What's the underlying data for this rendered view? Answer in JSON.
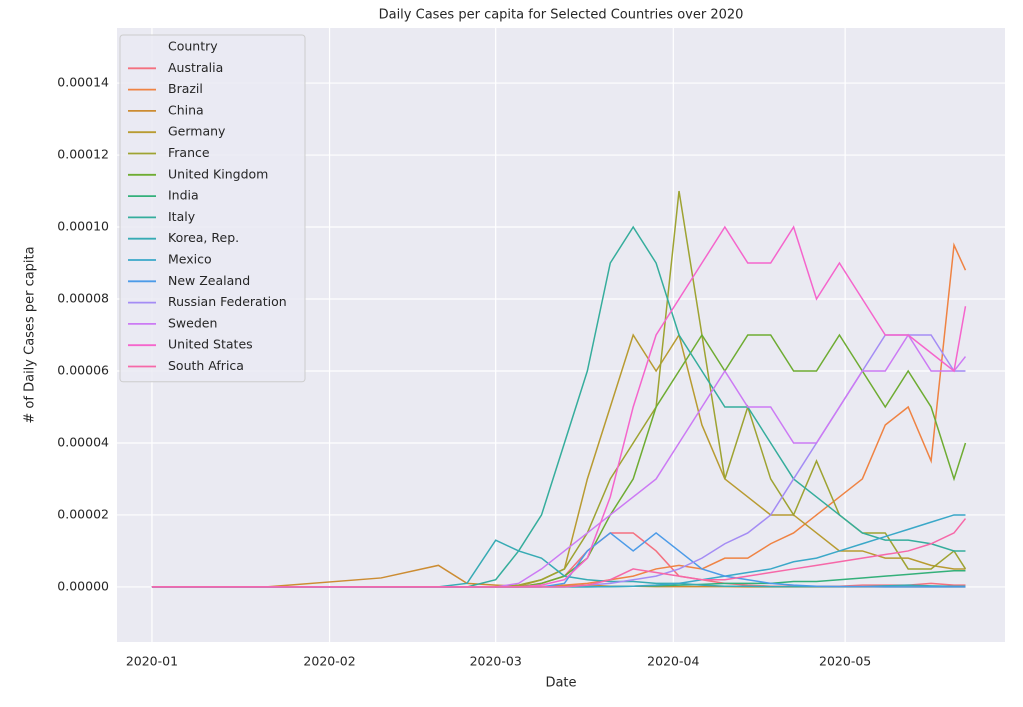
{
  "chart_data": {
    "type": "line",
    "title": "Daily Cases per capita for Selected Countries over 2020",
    "xlabel": "Date",
    "ylabel": "# of Daily Cases per capita",
    "legend_title": "Country",
    "legend": "upper left",
    "grid": true,
    "xlim": [
      -6.1,
      148.9
    ],
    "xticks": [
      {
        "value": 0,
        "label": "2020-01"
      },
      {
        "value": 31,
        "label": "2020-02"
      },
      {
        "value": 60,
        "label": "2020-03"
      },
      {
        "value": 91,
        "label": "2020-04"
      },
      {
        "value": 121,
        "label": "2020-05"
      }
    ],
    "ylim": [
      -1.53e-05,
      0.0001553
    ],
    "yticks": [
      {
        "value": 0,
        "label": "0.00000"
      },
      {
        "value": 2e-05,
        "label": "0.00002"
      },
      {
        "value": 4e-05,
        "label": "0.00004"
      },
      {
        "value": 6e-05,
        "label": "0.00006"
      },
      {
        "value": 8e-05,
        "label": "0.00008"
      },
      {
        "value": 0.0001,
        "label": "0.00010"
      },
      {
        "value": 0.00012,
        "label": "0.00012"
      },
      {
        "value": 0.00014,
        "label": "0.00014"
      }
    ],
    "x": [
      0,
      20,
      40,
      50,
      55,
      60,
      64,
      68,
      72,
      76,
      80,
      84,
      88,
      92,
      96,
      100,
      104,
      108,
      112,
      116,
      120,
      124,
      128,
      132,
      136,
      140,
      142
    ],
    "series": [
      {
        "name": "Australia",
        "color": "#f4707f",
        "values": [
          0,
          0,
          0,
          0,
          0,
          0,
          0,
          1e-06,
          3e-06,
          1e-05,
          1.5e-05,
          1.5e-05,
          1e-05,
          3e-06,
          2e-06,
          1e-06,
          5e-07,
          2e-07,
          2e-07,
          2e-07,
          2e-07,
          5e-07,
          5e-07,
          5e-07,
          1e-06,
          5e-07,
          5e-07
        ]
      },
      {
        "name": "Brazil",
        "color": "#ef8343",
        "values": [
          0,
          0,
          0,
          0,
          0,
          0,
          0,
          0,
          5e-07,
          1e-06,
          2e-06,
          3e-06,
          5e-06,
          6e-06,
          5e-06,
          8e-06,
          8e-06,
          1.2e-05,
          1.5e-05,
          2e-05,
          2.5e-05,
          3e-05,
          4.5e-05,
          5e-05,
          3.5e-05,
          9.5e-05,
          8.8e-05
        ]
      },
      {
        "name": "China",
        "color": "#cc8c32",
        "values": [
          0,
          0,
          2.5e-06,
          6e-06,
          1e-06,
          5e-07,
          2e-07,
          1e-07,
          2e-07,
          5e-07,
          2e-07,
          2e-07,
          1e-07,
          1e-07,
          1e-07,
          1e-07,
          0,
          0,
          0,
          0,
          0,
          0,
          0,
          0,
          0,
          0,
          0
        ]
      },
      {
        "name": "Germany",
        "color": "#b89b31",
        "values": [
          0,
          0,
          0,
          0,
          0,
          0,
          2e-07,
          2e-06,
          5e-06,
          3e-05,
          5e-05,
          7e-05,
          6e-05,
          7e-05,
          4.5e-05,
          3e-05,
          2.5e-05,
          2e-05,
          2e-05,
          1.5e-05,
          1e-05,
          1e-05,
          8e-06,
          8e-06,
          6e-06,
          5e-06,
          5e-06
        ]
      },
      {
        "name": "France",
        "color": "#9ea332",
        "values": [
          0,
          0,
          0,
          0,
          0,
          0,
          5e-07,
          2e-06,
          5e-06,
          1.5e-05,
          3e-05,
          4e-05,
          5e-05,
          0.00011,
          7e-05,
          3e-05,
          5e-05,
          3e-05,
          2e-05,
          3.5e-05,
          2e-05,
          1.5e-05,
          1.5e-05,
          5e-06,
          5e-06,
          1e-05,
          5e-06
        ]
      },
      {
        "name": "United Kingdom",
        "color": "#6eac32",
        "values": [
          0,
          0,
          0,
          0,
          0,
          0,
          0,
          1e-06,
          3e-06,
          8e-06,
          2e-05,
          3e-05,
          5e-05,
          6e-05,
          7e-05,
          6e-05,
          7e-05,
          7e-05,
          6e-05,
          6e-05,
          7e-05,
          6e-05,
          5e-05,
          6e-05,
          5e-05,
          3e-05,
          4e-05
        ]
      },
      {
        "name": "India",
        "color": "#33b07a",
        "values": [
          0,
          0,
          0,
          0,
          0,
          0,
          0,
          0,
          0,
          0,
          1e-07,
          2e-07,
          3e-07,
          5e-07,
          7e-07,
          1e-06,
          1e-06,
          1e-06,
          1.5e-06,
          1.5e-06,
          2e-06,
          2.5e-06,
          3e-06,
          3.5e-06,
          4e-06,
          4.5e-06,
          4.5e-06
        ]
      },
      {
        "name": "Italy",
        "color": "#35ad9c",
        "values": [
          0,
          0,
          0,
          0,
          0,
          2e-06,
          1e-05,
          2e-05,
          4e-05,
          6e-05,
          9e-05,
          0.0001,
          9e-05,
          7e-05,
          6e-05,
          5e-05,
          5e-05,
          4e-05,
          3e-05,
          2.5e-05,
          2e-05,
          1.5e-05,
          1.3e-05,
          1.3e-05,
          1.2e-05,
          1e-05,
          1e-05
        ]
      },
      {
        "name": "Korea, Rep.",
        "color": "#37abb4",
        "values": [
          0,
          0,
          0,
          0,
          1e-06,
          1.3e-05,
          1e-05,
          8e-06,
          3e-06,
          2e-06,
          1.5e-06,
          1.5e-06,
          1e-06,
          1e-06,
          5e-07,
          2e-07,
          2e-07,
          1e-07,
          1e-07,
          1e-07,
          1e-07,
          1e-07,
          3e-07,
          5e-07,
          3e-07,
          2e-07,
          2e-07
        ]
      },
      {
        "name": "Mexico",
        "color": "#3aa8c8",
        "values": [
          0,
          0,
          0,
          0,
          0,
          0,
          0,
          0,
          0,
          0,
          1e-07,
          2e-07,
          5e-07,
          1e-06,
          2e-06,
          3e-06,
          4e-06,
          5e-06,
          7e-06,
          8e-06,
          1e-05,
          1.2e-05,
          1.4e-05,
          1.6e-05,
          1.8e-05,
          2e-05,
          2e-05
        ]
      },
      {
        "name": "New Zealand",
        "color": "#4c9be8",
        "values": [
          0,
          0,
          0,
          0,
          0,
          0,
          0,
          0,
          1e-06,
          1e-05,
          1.5e-05,
          1e-05,
          1.5e-05,
          1e-05,
          5e-06,
          3e-06,
          2e-06,
          1e-06,
          5e-07,
          2e-07,
          1e-07,
          1e-07,
          0,
          0,
          0,
          0,
          0
        ]
      },
      {
        "name": "Russian Federation",
        "color": "#a48cf4",
        "values": [
          0,
          0,
          0,
          0,
          0,
          0,
          0,
          0,
          0,
          5e-07,
          1e-06,
          2e-06,
          3e-06,
          5e-06,
          8e-06,
          1.2e-05,
          1.5e-05,
          2e-05,
          3e-05,
          4e-05,
          5e-05,
          6e-05,
          7e-05,
          7e-05,
          7e-05,
          6e-05,
          6e-05
        ]
      },
      {
        "name": "Sweden",
        "color": "#cc7af4",
        "values": [
          0,
          0,
          0,
          0,
          0,
          0,
          1e-06,
          5e-06,
          1e-05,
          1.5e-05,
          2e-05,
          2.5e-05,
          3e-05,
          4e-05,
          5e-05,
          6e-05,
          5e-05,
          5e-05,
          4e-05,
          4e-05,
          5e-05,
          6e-05,
          6e-05,
          7e-05,
          6e-05,
          6e-05,
          6.4e-05
        ]
      },
      {
        "name": "United States",
        "color": "#f565cc",
        "values": [
          0,
          0,
          0,
          0,
          0,
          0,
          0,
          5e-07,
          2e-06,
          8e-06,
          2.5e-05,
          5e-05,
          7e-05,
          8e-05,
          9e-05,
          0.0001,
          9e-05,
          9e-05,
          0.0001,
          8e-05,
          9e-05,
          8e-05,
          7e-05,
          7e-05,
          6.5e-05,
          6e-05,
          7.8e-05
        ]
      },
      {
        "name": "South Africa",
        "color": "#f668a8",
        "values": [
          0,
          0,
          0,
          0,
          0,
          0,
          0,
          0,
          0,
          5e-07,
          2e-06,
          5e-06,
          4e-06,
          3e-06,
          2e-06,
          2e-06,
          3e-06,
          4e-06,
          5e-06,
          6e-06,
          7e-06,
          8e-06,
          9e-06,
          1e-05,
          1.2e-05,
          1.5e-05,
          1.9e-05
        ]
      }
    ]
  }
}
